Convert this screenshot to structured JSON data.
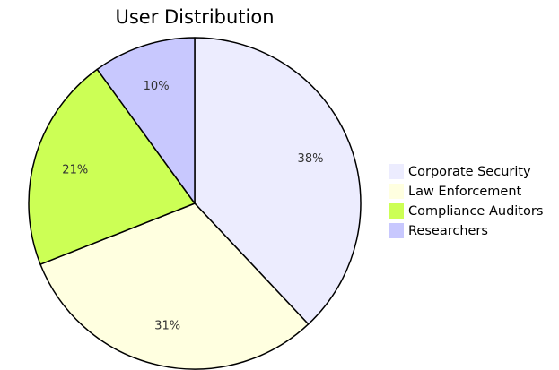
{
  "chart_data": {
    "type": "pie",
    "title": "User Distribution",
    "legend_position": "right",
    "slices": [
      {
        "label": "Corporate Security",
        "value": 38,
        "display": "38%",
        "color": "#ececfe"
      },
      {
        "label": "Law Enforcement",
        "value": 31,
        "display": "31%",
        "color": "#ffffe0"
      },
      {
        "label": "Compliance Auditors",
        "value": 21,
        "display": "21%",
        "color": "#ccff55"
      },
      {
        "label": "Researchers",
        "value": 10,
        "display": "10%",
        "color": "#c8c8fe"
      }
    ]
  }
}
